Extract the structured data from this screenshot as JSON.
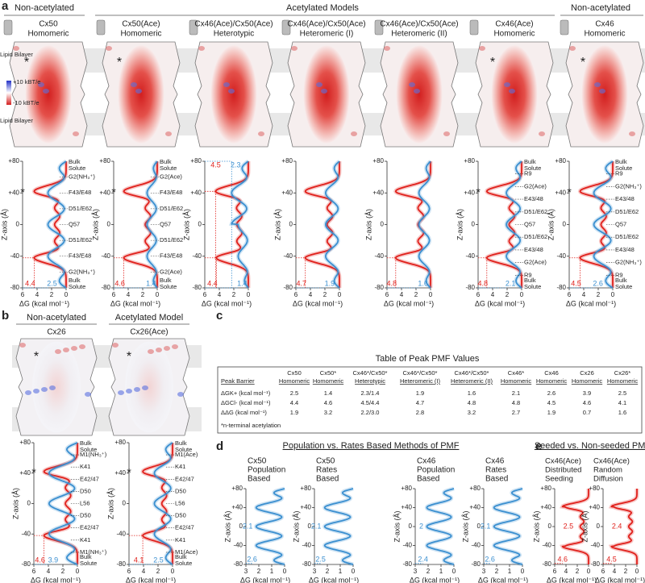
{
  "axes": {
    "zlabel": "Z-axis (Å)",
    "dglabel": "ΔG (kcal mol⁻¹)",
    "zlim": [
      -80,
      80
    ],
    "zticks": [
      {
        "value": 80,
        "label": "+80"
      },
      {
        "value": 40,
        "label": "+40"
      },
      0,
      -40,
      -80
    ],
    "dg_lim": [
      6,
      0
    ],
    "dg_ticks": [
      6,
      4,
      2,
      0
    ],
    "dg_lim_small": [
      3,
      0
    ],
    "dg_ticks_small": [
      3,
      2,
      1,
      0
    ]
  },
  "panel_a": {
    "letter": "a",
    "groups": [
      "Non-acetylated",
      "Acetylated Models",
      "Non-acetylated"
    ],
    "lipid": "Lipid Bilayer",
    "scale_pos": "+10 kBT/e",
    "scale_neg": "-10 kBT/e",
    "models": [
      {
        "name": "Cx50",
        "sub": "Homomeric",
        "asterisk": "*"
      },
      {
        "name": "Cx50(Ace)",
        "sub": "Homomeric",
        "asterisk": "*"
      },
      {
        "name": "Cx46(Ace)/Cx50(Ace)",
        "sub": "Heterotypic"
      },
      {
        "name": "Cx46(Ace)/Cx50(Ace)",
        "sub": "Heteromeric (I)"
      },
      {
        "name": "Cx46(Ace)/Cx50(Ace)",
        "sub": "Heteromeric (II)"
      },
      {
        "name": "Cx46(Ace)",
        "sub": "Homomeric",
        "asterisk": "*"
      },
      {
        "name": "Cx46",
        "sub": "Homomeric",
        "asterisk": "*"
      }
    ],
    "plots": [
      {
        "asterisk": "*",
        "labels": [
          "Bulk Solute",
          "G2(NH₃⁺)",
          "F43/E48",
          "D51/E62",
          "Q57",
          "D51/E62",
          "F43/E48",
          "G2(NH₃⁺)",
          "Bulk Solute"
        ],
        "red": 4.4,
        "blue": 2.5
      },
      {
        "asterisk": "*",
        "labels": [
          "Bulk Solute",
          "G2(Ace)",
          "F43/E48",
          "D51/E62",
          "Q57",
          "D51/E62",
          "F43/E48",
          "G2(Ace)",
          "Bulk Solute"
        ],
        "red": 4.6,
        "blue": 1.4
      },
      {
        "labels": [],
        "red_top": 4.5,
        "blue_top": 2.3,
        "red": 4.4,
        "blue": 1.4
      },
      {
        "labels": [],
        "red": 4.7,
        "blue": 1.9
      },
      {
        "labels": [],
        "red": 4.8,
        "blue": 1.6
      },
      {
        "asterisk": "*",
        "labels": [
          "Bulk Solute",
          "R9",
          "G2(Ace)",
          "E43/48",
          "D51/E62",
          "Q57",
          "D51/E62",
          "E43/48",
          "G2(Ace)",
          "R9",
          "Bulk Solute"
        ],
        "red": 4.8,
        "blue": 2.1
      },
      {
        "asterisk": "*",
        "labels": [
          "Bulk Solute",
          "R9",
          "G2(NH₃⁺)",
          "E43/48",
          "D51/E62",
          "Q57",
          "D51/E62",
          "E43/48",
          "G2(NH₃⁺)",
          "R9",
          "Bulk Solute"
        ],
        "red": 4.5,
        "blue": 2.6
      }
    ]
  },
  "panel_b": {
    "letter": "b",
    "models": [
      {
        "group": "Non-acetylated",
        "name": "Cx26",
        "asterisk": "*"
      },
      {
        "group": "Acetylated Model",
        "name": "Cx26(Ace)",
        "asterisk": "*"
      }
    ],
    "plots": [
      {
        "asterisk": "*",
        "labels": [
          "Bulk Solute",
          "M1(NH₃⁺)",
          "K41",
          "E42/47",
          "D50",
          "L56",
          "D50",
          "E42/47",
          "K41",
          "M1(NH₃⁺)",
          "Bulk Solute"
        ],
        "red": 4.6,
        "blue": 3.9
      },
      {
        "asterisk": "*",
        "labels": [
          "Bulk Solute",
          "M1(Ace)",
          "K41",
          "E42/47",
          "D50",
          "L56",
          "D50",
          "E42/47",
          "K41",
          "M1(Ace)",
          "Bulk Solute"
        ],
        "red": 4.1,
        "blue": 2.5
      }
    ]
  },
  "panel_c": {
    "letter": "c",
    "title": "Table of Peak PMF Values",
    "header": [
      [
        "",
        "Peak Barrier"
      ],
      [
        "Cx50",
        "Homomeric"
      ],
      [
        "Cx50*",
        "Homomeric"
      ],
      [
        "Cx46*/Cx50*",
        "Heterotypic"
      ],
      [
        "Cx46*/Cx50*",
        "Heteromeric (I)"
      ],
      [
        "Cx46*/Cx50*",
        "Heteromeric (II)"
      ],
      [
        "Cx46*",
        "Homomeric"
      ],
      [
        "Cx46",
        "Homomeric"
      ],
      [
        "Cx26",
        "Homomeric"
      ],
      [
        "Cx26*",
        "Homomeric"
      ]
    ],
    "rows": [
      [
        "ΔGK+ (kcal mol⁻¹)",
        "2.5",
        "1.4",
        "2.3/1.4",
        "1.9",
        "1.6",
        "2.1",
        "2.6",
        "3.9",
        "2.5"
      ],
      [
        "ΔGCl- (kcal mol⁻¹)",
        "4.4",
        "4.6",
        "4.5/4.4",
        "4.7",
        "4.8",
        "4.8",
        "4.5",
        "4.6",
        "4.1"
      ],
      [
        "ΔΔG (kcal mol⁻¹)",
        "1.9",
        "3.2",
        "2.2/3.0",
        "2.8",
        "3.2",
        "2.7",
        "1.9",
        "0.7",
        "1.6"
      ]
    ],
    "footnote": "*n-terminal acetylation"
  },
  "panel_d": {
    "letter": "d",
    "title": "Population vs. Rates Based Methods of PMF",
    "plots": [
      {
        "name": [
          "Cx50",
          "Population",
          "Based"
        ],
        "mid": 2.1,
        "end": 2.6
      },
      {
        "name": [
          "Cx50",
          "Rates",
          "Based"
        ],
        "mid": 2.1,
        "end": 2.5
      },
      {
        "name": [
          "Cx46",
          "Population",
          "Based"
        ],
        "mid": 2.0,
        "end": 2.4
      },
      {
        "name": [
          "Cx46",
          "Rates",
          "Based"
        ],
        "mid": 2.1,
        "end": 2.6
      }
    ]
  },
  "panel_e": {
    "letter": "e",
    "title": "Seeded vs. Non-seeded PMF",
    "plots": [
      {
        "name": [
          "Cx46(Ace)",
          "Distributed",
          "Seeding"
        ],
        "mid": 2.5,
        "end": 4.6
      },
      {
        "name": [
          "Cx46(Ace)",
          "Random",
          "Diffusion"
        ],
        "mid": 2.4,
        "end": 4.5
      }
    ]
  }
}
